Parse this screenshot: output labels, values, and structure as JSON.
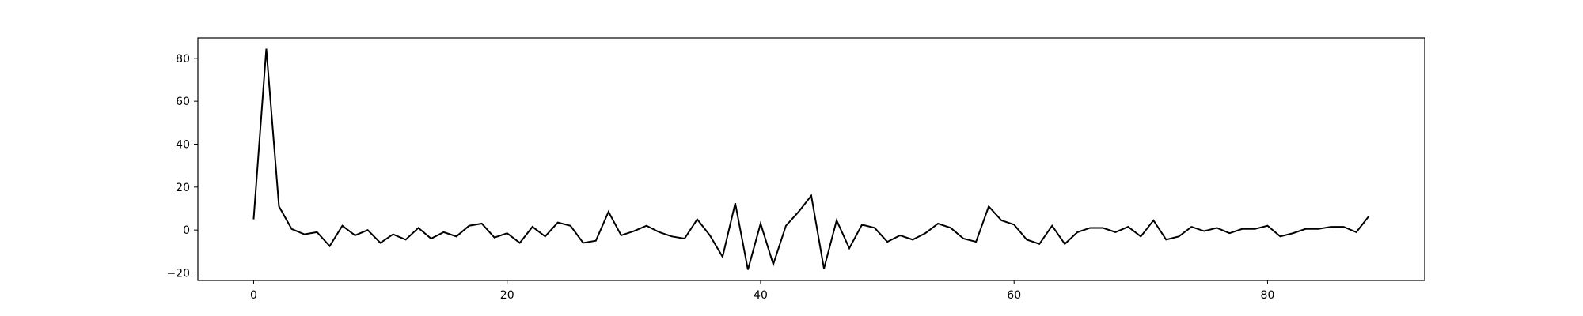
{
  "chart_data": {
    "type": "line",
    "title": "",
    "xlabel": "",
    "ylabel": "",
    "xlim": [
      -4.4,
      92.4
    ],
    "ylim": [
      -23.5,
      89.5
    ],
    "x_ticks": [
      0,
      20,
      40,
      60,
      80
    ],
    "y_ticks": [
      -20,
      0,
      20,
      40,
      60,
      80
    ],
    "x_tick_labels": [
      "0",
      "20",
      "40",
      "60",
      "80"
    ],
    "y_tick_labels": [
      "−20",
      "0",
      "20",
      "40",
      "60",
      "80"
    ],
    "grid": false,
    "line_color": "#000000",
    "x": [
      0,
      1,
      2,
      3,
      4,
      5,
      6,
      7,
      8,
      9,
      10,
      11,
      12,
      13,
      14,
      15,
      16,
      17,
      18,
      19,
      20,
      21,
      22,
      23,
      24,
      25,
      26,
      27,
      28,
      29,
      30,
      31,
      32,
      33,
      34,
      35,
      36,
      37,
      38,
      39,
      40,
      41,
      42,
      43,
      44,
      45,
      46,
      47,
      48,
      49,
      50,
      51,
      52,
      53,
      54,
      55,
      56,
      57,
      58,
      59,
      60,
      61,
      62,
      63,
      64,
      65,
      66,
      67,
      68,
      69,
      70,
      71,
      72,
      73,
      74,
      75,
      76,
      77,
      78,
      79,
      80,
      81,
      82,
      83,
      84,
      85,
      86,
      87,
      88
    ],
    "series": [
      {
        "values": [
          5,
          84.5,
          11,
          0.5,
          -2,
          -1,
          -7.5,
          2,
          -2.5,
          0,
          -6,
          -2,
          -4.5,
          1,
          -4,
          -1,
          -3,
          2,
          3,
          -3.5,
          -1.5,
          -6,
          1.5,
          -3,
          3.5,
          2,
          -6,
          -5,
          8.5,
          -2.5,
          -0.5,
          2,
          -1,
          -3,
          -4,
          5,
          -2.5,
          -12.5,
          12.5,
          -18.5,
          3,
          -16,
          2,
          8.5,
          16,
          -18,
          4.5,
          -8.5,
          2.5,
          1,
          -5.5,
          -2.5,
          -4.5,
          -1.5,
          3,
          1,
          -4,
          -5.5,
          11,
          4.5,
          2.5,
          -4.5,
          -6.5,
          2,
          -6.5,
          -1,
          1,
          1,
          -1,
          1.5,
          -3,
          4.5,
          -4.5,
          -3,
          1.5,
          -0.5,
          1,
          -1.5,
          0.5,
          0.5,
          2,
          -3,
          -1.5,
          0.5,
          0.5,
          1.5,
          1.5,
          -1,
          6.5
        ]
      }
    ]
  }
}
